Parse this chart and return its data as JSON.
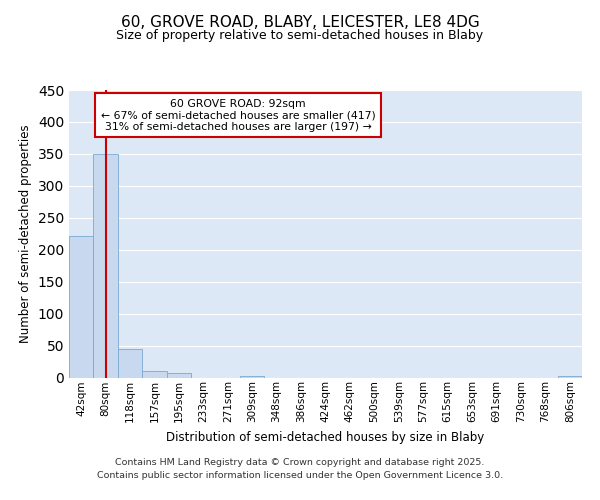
{
  "title_line1": "60, GROVE ROAD, BLABY, LEICESTER, LE8 4DG",
  "title_line2": "Size of property relative to semi-detached houses in Blaby",
  "xlabel": "Distribution of semi-detached houses by size in Blaby",
  "ylabel": "Number of semi-detached properties",
  "bin_labels": [
    "42sqm",
    "80sqm",
    "118sqm",
    "157sqm",
    "195sqm",
    "233sqm",
    "271sqm",
    "309sqm",
    "348sqm",
    "386sqm",
    "424sqm",
    "462sqm",
    "500sqm",
    "539sqm",
    "577sqm",
    "615sqm",
    "653sqm",
    "691sqm",
    "730sqm",
    "768sqm",
    "806sqm"
  ],
  "bar_values": [
    222,
    350,
    45,
    10,
    7,
    0,
    0,
    3,
    0,
    0,
    0,
    0,
    0,
    0,
    0,
    0,
    0,
    0,
    0,
    0,
    2
  ],
  "bar_color": "#c8d8ef",
  "bar_edge_color": "#7aaad0",
  "plot_bg_color": "#dce8f5",
  "fig_bg_color": "#ffffff",
  "grid_color": "#ffffff",
  "red_line_x": 1,
  "annotation_text": "60 GROVE ROAD: 92sqm\n← 67% of semi-detached houses are smaller (417)\n31% of semi-detached houses are larger (197) →",
  "annotation_box_facecolor": "#ffffff",
  "annotation_border_color": "#cc0000",
  "ylim": [
    0,
    450
  ],
  "yticks": [
    0,
    50,
    100,
    150,
    200,
    250,
    300,
    350,
    400,
    450
  ],
  "footer_line1": "Contains HM Land Registry data © Crown copyright and database right 2025.",
  "footer_line2": "Contains public sector information licensed under the Open Government Licence 3.0."
}
